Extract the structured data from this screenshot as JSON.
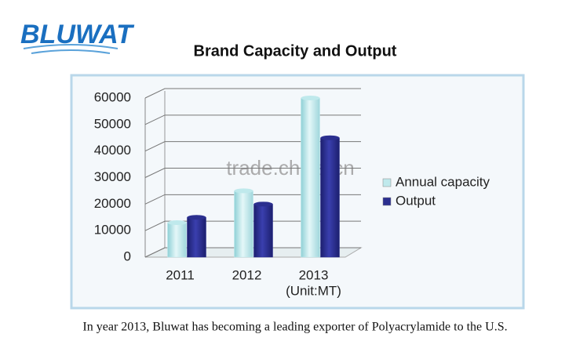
{
  "logo": "BLUWAT",
  "watermark": "trade.china.cn",
  "caption": "In year 2013, Bluwat has becoming a leading exporter of Polyacrylamide to the U.S.",
  "chart_data": {
    "type": "bar",
    "title": "Brand Capacity and Output",
    "categories": [
      "2011",
      "2012",
      "2013"
    ],
    "x_label": "(Unit:MT)",
    "series": [
      {
        "name": "Annual capacity",
        "color": "#bfe9ec",
        "values": [
          13000,
          25000,
          60000
        ]
      },
      {
        "name": "Output",
        "color": "#2b2f8f",
        "values": [
          15000,
          20000,
          45000
        ]
      }
    ],
    "ylim": [
      0,
      60000
    ],
    "yticks": [
      0,
      10000,
      20000,
      30000,
      40000,
      50000,
      60000
    ],
    "grid": true,
    "legend": "right"
  }
}
